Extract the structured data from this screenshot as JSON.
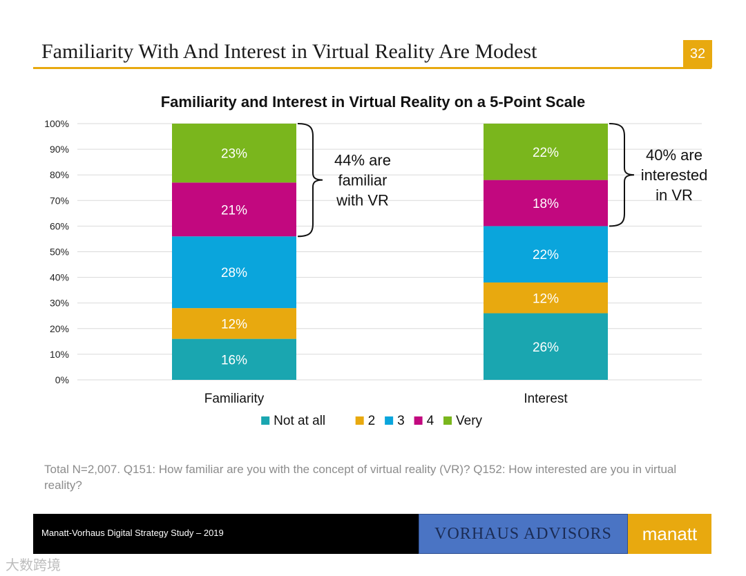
{
  "slide": {
    "title": "Familiarity With And Interest in Virtual Reality Are Modest",
    "page_number": "32",
    "footnote": "Total N=2,007. Q151: How familiar are you with the concept of virtual reality (VR)? Q152: How interested are you in virtual reality?",
    "footer_text": "Manatt-Vorhaus Digital Strategy Study – 2019",
    "logo_vorhaus": "VORHAUS ADVISORS",
    "logo_manatt": "manatt",
    "watermark": "大数跨境",
    "accent_color": "#e8a90f"
  },
  "chart_data": {
    "type": "bar",
    "stacked": true,
    "title": "Familiarity and Interest in Virtual Reality on a 5-Point Scale",
    "xlabel": "",
    "ylabel": "",
    "categories": [
      "Familiarity",
      "Interest"
    ],
    "ylim": [
      0,
      100
    ],
    "yticks": [
      "0%",
      "10%",
      "20%",
      "30%",
      "40%",
      "50%",
      "60%",
      "70%",
      "80%",
      "90%",
      "100%"
    ],
    "grid": true,
    "legend_position": "bottom",
    "series": [
      {
        "name": "Not at all",
        "color": "#1aa6b0",
        "values": [
          16,
          26
        ],
        "labels": [
          "16%",
          "26%"
        ]
      },
      {
        "name": "2",
        "color": "#e8a90f",
        "values": [
          12,
          12
        ],
        "labels": [
          "12%",
          "12%"
        ]
      },
      {
        "name": "3",
        "color": "#0aa5dc",
        "values": [
          28,
          22
        ],
        "labels": [
          "28%",
          "22%"
        ]
      },
      {
        "name": "4",
        "color": "#c2087f",
        "values": [
          21,
          18
        ],
        "labels": [
          "21%",
          "18%"
        ]
      },
      {
        "name": "Very",
        "color": "#7ab61d",
        "values": [
          23,
          22
        ],
        "labels": [
          "23%",
          "22%"
        ]
      }
    ],
    "annotations": [
      {
        "text_lines": [
          "44% are",
          "familiar",
          "with VR"
        ],
        "category": "Familiarity",
        "from": 56,
        "to": 100
      },
      {
        "text_lines": [
          "40% are",
          "interested",
          "in VR"
        ],
        "category": "Interest",
        "from": 60,
        "to": 100
      }
    ]
  }
}
